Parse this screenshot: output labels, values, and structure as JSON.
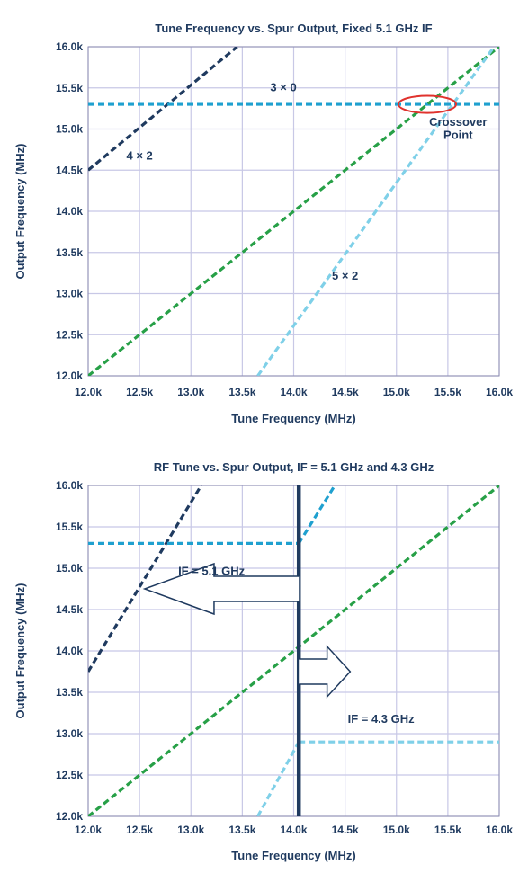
{
  "colors": {
    "dark_navy": "#1f3a5f",
    "cyan": "#1fa0cf",
    "light_cyan": "#7fd0e8",
    "green": "#27a047",
    "grid": "#c8c8e6",
    "red": "#e0322d"
  },
  "chart_data": [
    {
      "type": "line",
      "title": "Tune Frequency vs. Spur Output, Fixed 5.1 GHz IF",
      "xlabel": "Tune Frequency (MHz)",
      "ylabel": "Output Frequency (MHz)",
      "xlim": [
        12000,
        16000
      ],
      "ylim": [
        12000,
        16000
      ],
      "x_ticks": [
        12000,
        12500,
        13000,
        13500,
        14000,
        14500,
        15000,
        15500,
        16000
      ],
      "x_tick_labels": [
        "12.0k",
        "12.5k",
        "13.0k",
        "13.5k",
        "14.0k",
        "14.5k",
        "15.0k",
        "15.5k",
        "16.0k"
      ],
      "y_ticks": [
        12000,
        12500,
        13000,
        13500,
        14000,
        14500,
        15000,
        15500,
        16000
      ],
      "y_tick_labels": [
        "12.0k",
        "12.5k",
        "13.0k",
        "13.5k",
        "14.0k",
        "14.5k",
        "15.0k",
        "15.5k",
        "16.0k"
      ],
      "grid": true,
      "series": [
        {
          "color": "#1f3a5f",
          "x": [
            12000,
            13450
          ],
          "y": [
            14500,
            16000
          ]
        },
        {
          "color": "#1fa0cf",
          "x": [
            12000,
            16000
          ],
          "y": [
            15300,
            15300
          ]
        },
        {
          "color": "#27a047",
          "x": [
            12000,
            16000
          ],
          "y": [
            12000,
            16000
          ]
        },
        {
          "color": "#7fd0e8",
          "x": [
            13650,
            15950
          ],
          "y": [
            12000,
            16000
          ]
        }
      ],
      "annotations": [
        {
          "text": "3 × 0",
          "x": 13900,
          "y": 15460
        },
        {
          "text": "4 × 2",
          "x": 12500,
          "y": 14630
        },
        {
          "text": "5 × 2",
          "x": 14500,
          "y": 13170
        },
        {
          "text": "Crossover",
          "x": 15600,
          "y": 15040
        },
        {
          "text": "Point",
          "x": 15600,
          "y": 14880
        }
      ],
      "markers": [
        {
          "shape": "ellipse",
          "color": "#e0322d",
          "x": 15300,
          "y": 15300,
          "rx": 280,
          "ry": 105
        }
      ]
    },
    {
      "type": "line",
      "title": "RF Tune vs. Spur Output, IF = 5.1 GHz and 4.3 GHz",
      "xlabel": "Tune Frequency (MHz)",
      "ylabel": "Output Frequency (MHz)",
      "xlim": [
        12000,
        16000
      ],
      "ylim": [
        12000,
        16000
      ],
      "x_ticks": [
        12000,
        12500,
        13000,
        13500,
        14000,
        14500,
        15000,
        15500,
        16000
      ],
      "x_tick_labels": [
        "12.0k",
        "12.5k",
        "13.0k",
        "13.5k",
        "14.0k",
        "14.5k",
        "15.0k",
        "15.5k",
        "16.0k"
      ],
      "y_ticks": [
        12000,
        12500,
        13000,
        13500,
        14000,
        14500,
        15000,
        15500,
        16000
      ],
      "y_tick_labels": [
        "12.0k",
        "12.5k",
        "13.0k",
        "13.5k",
        "14.0k",
        "14.5k",
        "15.0k",
        "15.5k",
        "16.0k"
      ],
      "grid": true,
      "series": [
        {
          "color": "#1f3a5f",
          "x": [
            12000,
            13100
          ],
          "y": [
            13750,
            16000
          ]
        },
        {
          "color": "#1fa0cf",
          "x": [
            12000,
            14050
          ],
          "y": [
            15300,
            15300
          ]
        },
        {
          "color": "#1fa0cf",
          "x": [
            14050,
            14400
          ],
          "y": [
            15300,
            16000
          ]
        },
        {
          "color": "#27a047",
          "x": [
            12000,
            16000
          ],
          "y": [
            12000,
            16000
          ]
        },
        {
          "color": "#7fd0e8",
          "x": [
            13650,
            14050
          ],
          "y": [
            12000,
            12900
          ]
        },
        {
          "color": "#7fd0e8",
          "x": [
            14050,
            16000
          ],
          "y": [
            12900,
            12900
          ]
        }
      ],
      "vline": {
        "x": 14050,
        "color": "#1f3a5f"
      },
      "annotations": [
        {
          "text": "IF = 5.1 GHz",
          "x": 13200,
          "y": 14920
        },
        {
          "text": "IF = 4.3 GHz",
          "x": 14850,
          "y": 13130
        }
      ],
      "arrows": [
        {
          "direction": "left",
          "tip_x": 12550,
          "tail_x": 14050,
          "y": 14750
        },
        {
          "direction": "right",
          "tip_x": 14550,
          "tail_x": 14050,
          "y": 13750
        }
      ]
    }
  ]
}
